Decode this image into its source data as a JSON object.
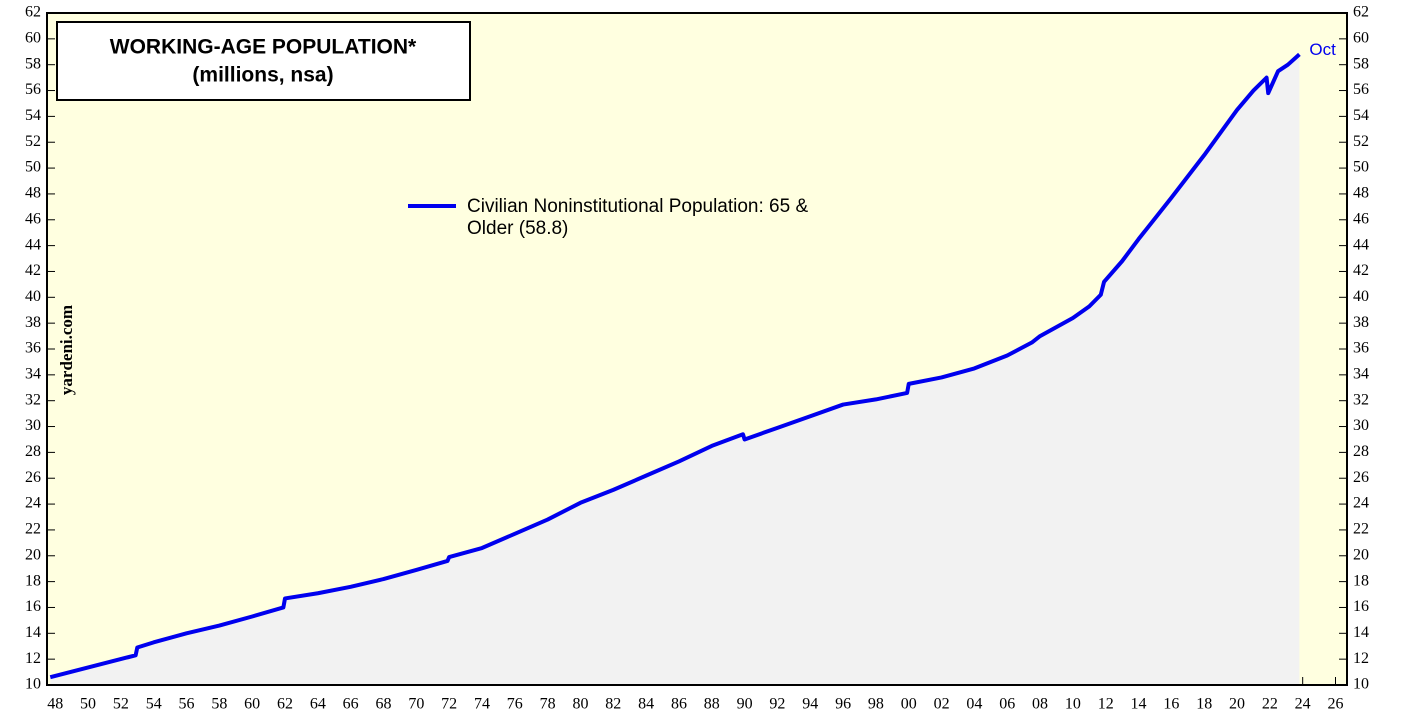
{
  "chart_data": {
    "type": "area",
    "title": "WORKING-AGE POPULATION*",
    "subtitle": "(millions, nsa)",
    "annotations": [
      "Oct",
      "yardeni.com"
    ],
    "background": "#ffffe0",
    "fill_color": "#f2f2f2",
    "xlim": [
      1947.5,
      2026.7
    ],
    "xticks": [
      {
        "value": 1948,
        "label": "48"
      },
      {
        "value": 1950,
        "label": "50"
      },
      {
        "value": 1952,
        "label": "52"
      },
      {
        "value": 1954,
        "label": "54"
      },
      {
        "value": 1956,
        "label": "56"
      },
      {
        "value": 1958,
        "label": "58"
      },
      {
        "value": 1960,
        "label": "60"
      },
      {
        "value": 1962,
        "label": "62"
      },
      {
        "value": 1964,
        "label": "64"
      },
      {
        "value": 1966,
        "label": "66"
      },
      {
        "value": 1968,
        "label": "68"
      },
      {
        "value": 1970,
        "label": "70"
      },
      {
        "value": 1972,
        "label": "72"
      },
      {
        "value": 1974,
        "label": "74"
      },
      {
        "value": 1976,
        "label": "76"
      },
      {
        "value": 1978,
        "label": "78"
      },
      {
        "value": 1980,
        "label": "80"
      },
      {
        "value": 1982,
        "label": "82"
      },
      {
        "value": 1984,
        "label": "84"
      },
      {
        "value": 1986,
        "label": "86"
      },
      {
        "value": 1988,
        "label": "88"
      },
      {
        "value": 1990,
        "label": "90"
      },
      {
        "value": 1992,
        "label": "92"
      },
      {
        "value": 1994,
        "label": "94"
      },
      {
        "value": 1996,
        "label": "96"
      },
      {
        "value": 1998,
        "label": "98"
      },
      {
        "value": 2000,
        "label": "00"
      },
      {
        "value": 2002,
        "label": "02"
      },
      {
        "value": 2004,
        "label": "04"
      },
      {
        "value": 2006,
        "label": "06"
      },
      {
        "value": 2008,
        "label": "08"
      },
      {
        "value": 2010,
        "label": "10"
      },
      {
        "value": 2012,
        "label": "12"
      },
      {
        "value": 2014,
        "label": "14"
      },
      {
        "value": 2016,
        "label": "16"
      },
      {
        "value": 2018,
        "label": "18"
      },
      {
        "value": 2020,
        "label": "20"
      },
      {
        "value": 2022,
        "label": "22"
      },
      {
        "value": 2024,
        "label": "24"
      },
      {
        "value": 2026,
        "label": "26"
      }
    ],
    "ylim": [
      10,
      62
    ],
    "yticks": [
      10,
      12,
      14,
      16,
      18,
      20,
      22,
      24,
      26,
      28,
      30,
      32,
      34,
      36,
      38,
      40,
      42,
      44,
      46,
      48,
      50,
      52,
      54,
      56,
      58,
      60,
      62
    ],
    "x": [
      1947.7,
      1952.9,
      1953.0,
      1954,
      1956,
      1958,
      1960,
      1961.9,
      1962.0,
      1964,
      1966,
      1968,
      1970,
      1971.9,
      1972.0,
      1974,
      1976,
      1978,
      1980,
      1982,
      1984,
      1986,
      1988,
      1989.9,
      1990.0,
      1992,
      1994,
      1996,
      1998,
      1999.9,
      2000.0,
      2002,
      2004,
      2006,
      2007.5,
      2008,
      2010,
      2011,
      2011.7,
      2011.9,
      2013,
      2014,
      2016,
      2018,
      2020,
      2021,
      2021.8,
      2021.9,
      2022.5,
      2023.1,
      2023.8
    ],
    "series": [
      {
        "name": "Civilian Noninstitutional Population: 65 & Older (58.8)",
        "color": "#0000ee",
        "values": [
          10.6,
          12.3,
          12.9,
          13.3,
          14.0,
          14.6,
          15.3,
          16.0,
          16.7,
          17.1,
          17.6,
          18.2,
          18.9,
          19.6,
          19.9,
          20.6,
          21.7,
          22.8,
          24.1,
          25.1,
          26.2,
          27.3,
          28.5,
          29.4,
          29.0,
          29.9,
          30.8,
          31.7,
          32.1,
          32.6,
          33.3,
          33.8,
          34.5,
          35.5,
          36.5,
          37.0,
          38.4,
          39.3,
          40.2,
          41.2,
          42.8,
          44.5,
          47.7,
          51.0,
          54.5,
          56.0,
          57.0,
          55.8,
          57.5,
          58.0,
          58.8
        ]
      }
    ]
  }
}
